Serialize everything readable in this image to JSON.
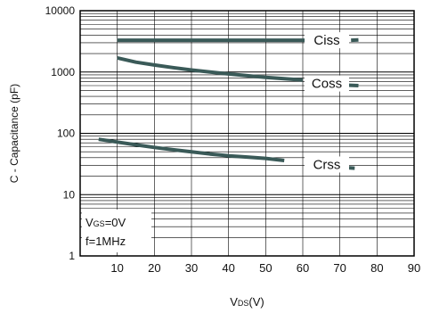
{
  "chart_data": {
    "type": "line",
    "xlabel": {
      "main": "V",
      "sub": "DS",
      "tail": "(V)"
    },
    "ylabel": "C - Capacitance (pF)",
    "xlim": [
      0,
      90
    ],
    "ylim": [
      1,
      10000
    ],
    "y_scale": "log",
    "grid": true,
    "x_ticks": [
      10,
      20,
      30,
      40,
      50,
      60,
      70,
      80,
      90
    ],
    "y_ticks": [
      {
        "value": 1,
        "label": "1"
      },
      {
        "value": 10,
        "label": "10"
      },
      {
        "value": 100,
        "label": "100"
      },
      {
        "value": 1000,
        "label": "1000"
      },
      {
        "value": 10000,
        "label": "10000"
      }
    ],
    "series": [
      {
        "name": "Ciss",
        "x": [
          10,
          20,
          30,
          40,
          50,
          60,
          65
        ],
        "y": [
          3300,
          3300,
          3300,
          3300,
          3300,
          3300,
          3300
        ],
        "label_at": [
          60,
          3300
        ]
      },
      {
        "name": "Ciss",
        "x": [
          73,
          75
        ],
        "y": [
          3300,
          3350
        ]
      },
      {
        "name": "Coss",
        "x": [
          10,
          15,
          20,
          25,
          30,
          35,
          40,
          45,
          50,
          55,
          60
        ],
        "y": [
          1700,
          1450,
          1300,
          1180,
          1080,
          1000,
          930,
          870,
          820,
          780,
          740
        ],
        "label_at": [
          60,
          650
        ]
      },
      {
        "name": "Coss",
        "x": [
          72,
          75
        ],
        "y": [
          610,
          600
        ]
      },
      {
        "name": "Crss",
        "x": [
          5,
          10,
          15,
          20,
          25,
          30,
          35,
          40,
          45,
          50,
          55
        ],
        "y": [
          80,
          72,
          65,
          59,
          54,
          50,
          46,
          43,
          41,
          39,
          36
        ],
        "label_at": [
          60,
          31
        ]
      },
      {
        "name": "Crss",
        "x": [
          70,
          74
        ],
        "y": [
          28,
          27
        ]
      }
    ],
    "annotation": {
      "line1_main": "V",
      "line1_sub": "GS",
      "line1_tail": "=0V",
      "line2": "f=1MHz"
    },
    "line_color": "#3a5a58"
  }
}
